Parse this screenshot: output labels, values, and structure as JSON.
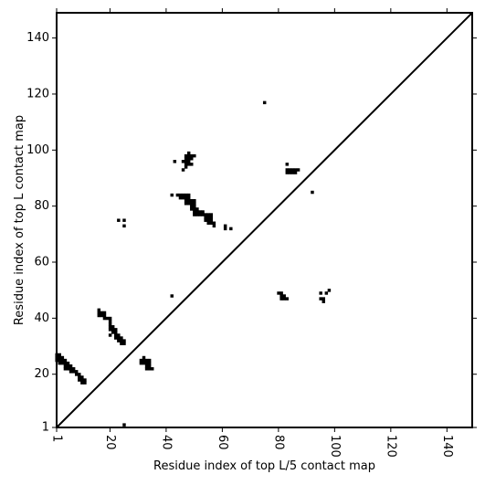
{
  "chart_data": {
    "type": "heatmap",
    "title": "",
    "xlabel": "Residue index of top L/5 contact map",
    "ylabel": "Residue index of top L contact map",
    "xlim": [
      1,
      149
    ],
    "ylim": [
      1,
      149
    ],
    "xticks": [
      {
        "value": 1,
        "label": "1"
      },
      {
        "value": 20,
        "label": "20"
      },
      {
        "value": 40,
        "label": "40"
      },
      {
        "value": 60,
        "label": "60"
      },
      {
        "value": 80,
        "label": "80"
      },
      {
        "value": 100,
        "label": "100"
      },
      {
        "value": 120,
        "label": "120"
      },
      {
        "value": 140,
        "label": "140"
      }
    ],
    "yticks": [
      {
        "value": 1,
        "label": "1"
      },
      {
        "value": 20,
        "label": "20"
      },
      {
        "value": 40,
        "label": "40"
      },
      {
        "value": 60,
        "label": "60"
      },
      {
        "value": 80,
        "label": "80"
      },
      {
        "value": 100,
        "label": "100"
      },
      {
        "value": 120,
        "label": "120"
      },
      {
        "value": 140,
        "label": "140"
      }
    ],
    "diagonal": true,
    "cell_color": "#000000",
    "contacts": [
      [
        1,
        27
      ],
      [
        2,
        27
      ],
      [
        1,
        26
      ],
      [
        2,
        26
      ],
      [
        3,
        26
      ],
      [
        1,
        25
      ],
      [
        2,
        25
      ],
      [
        3,
        25
      ],
      [
        4,
        25
      ],
      [
        2,
        24
      ],
      [
        3,
        24
      ],
      [
        4,
        24
      ],
      [
        5,
        24
      ],
      [
        4,
        23
      ],
      [
        5,
        23
      ],
      [
        6,
        23
      ],
      [
        4,
        22
      ],
      [
        5,
        22
      ],
      [
        6,
        22
      ],
      [
        7,
        22
      ],
      [
        6,
        21
      ],
      [
        7,
        21
      ],
      [
        8,
        21
      ],
      [
        8,
        20
      ],
      [
        9,
        20
      ],
      [
        9,
        19
      ],
      [
        10,
        19
      ],
      [
        9,
        18
      ],
      [
        10,
        18
      ],
      [
        11,
        18
      ],
      [
        10,
        17
      ],
      [
        11,
        17
      ],
      [
        16,
        43
      ],
      [
        16,
        42
      ],
      [
        17,
        42
      ],
      [
        18,
        42
      ],
      [
        16,
        41
      ],
      [
        17,
        41
      ],
      [
        18,
        41
      ],
      [
        18,
        40
      ],
      [
        19,
        40
      ],
      [
        20,
        40
      ],
      [
        20,
        39
      ],
      [
        20,
        38
      ],
      [
        20,
        37
      ],
      [
        21,
        37
      ],
      [
        20,
        36
      ],
      [
        21,
        36
      ],
      [
        22,
        36
      ],
      [
        21,
        35
      ],
      [
        22,
        35
      ],
      [
        20,
        34
      ],
      [
        22,
        34
      ],
      [
        23,
        34
      ],
      [
        22,
        33
      ],
      [
        23,
        33
      ],
      [
        24,
        33
      ],
      [
        23,
        32
      ],
      [
        24,
        32
      ],
      [
        25,
        32
      ],
      [
        24,
        31
      ],
      [
        25,
        31
      ],
      [
        31,
        25
      ],
      [
        32,
        25
      ],
      [
        33,
        25
      ],
      [
        34,
        25
      ],
      [
        32,
        26
      ],
      [
        31,
        24
      ],
      [
        32,
        24
      ],
      [
        33,
        24
      ],
      [
        34,
        24
      ],
      [
        33,
        23
      ],
      [
        34,
        23
      ],
      [
        33,
        22
      ],
      [
        34,
        22
      ],
      [
        35,
        22
      ],
      [
        42,
        48
      ],
      [
        25,
        2
      ],
      [
        48,
        99
      ],
      [
        47,
        98
      ],
      [
        48,
        98
      ],
      [
        49,
        98
      ],
      [
        50,
        98
      ],
      [
        47,
        97
      ],
      [
        48,
        97
      ],
      [
        49,
        97
      ],
      [
        43,
        96
      ],
      [
        46,
        96
      ],
      [
        47,
        96
      ],
      [
        48,
        96
      ],
      [
        47,
        95
      ],
      [
        48,
        95
      ],
      [
        49,
        95
      ],
      [
        47,
        94
      ],
      [
        46,
        93
      ],
      [
        42,
        84
      ],
      [
        44,
        84
      ],
      [
        45,
        84
      ],
      [
        46,
        84
      ],
      [
        47,
        84
      ],
      [
        48,
        84
      ],
      [
        45,
        83
      ],
      [
        46,
        83
      ],
      [
        47,
        83
      ],
      [
        48,
        83
      ],
      [
        47,
        82
      ],
      [
        48,
        82
      ],
      [
        49,
        82
      ],
      [
        50,
        82
      ],
      [
        47,
        81
      ],
      [
        48,
        81
      ],
      [
        49,
        81
      ],
      [
        50,
        81
      ],
      [
        49,
        80
      ],
      [
        50,
        80
      ],
      [
        49,
        79
      ],
      [
        50,
        79
      ],
      [
        51,
        79
      ],
      [
        50,
        78
      ],
      [
        51,
        78
      ],
      [
        52,
        78
      ],
      [
        53,
        78
      ],
      [
        50,
        77
      ],
      [
        51,
        77
      ],
      [
        52,
        77
      ],
      [
        53,
        77
      ],
      [
        54,
        77
      ],
      [
        55,
        77
      ],
      [
        56,
        77
      ],
      [
        54,
        76
      ],
      [
        55,
        76
      ],
      [
        56,
        76
      ],
      [
        54,
        75
      ],
      [
        55,
        75
      ],
      [
        56,
        75
      ],
      [
        55,
        74
      ],
      [
        56,
        74
      ],
      [
        57,
        74
      ],
      [
        57,
        73
      ],
      [
        23,
        75
      ],
      [
        25,
        75
      ],
      [
        25,
        73
      ],
      [
        61,
        73
      ],
      [
        61,
        72
      ],
      [
        63,
        72
      ],
      [
        75,
        117
      ],
      [
        83,
        95
      ],
      [
        83,
        93
      ],
      [
        84,
        93
      ],
      [
        85,
        93
      ],
      [
        86,
        93
      ],
      [
        87,
        93
      ],
      [
        83,
        92
      ],
      [
        84,
        92
      ],
      [
        85,
        92
      ],
      [
        86,
        92
      ],
      [
        92,
        85
      ],
      [
        80,
        49
      ],
      [
        81,
        49
      ],
      [
        81,
        48
      ],
      [
        82,
        48
      ],
      [
        81,
        47
      ],
      [
        82,
        47
      ],
      [
        83,
        47
      ],
      [
        95,
        49
      ],
      [
        97,
        49
      ],
      [
        98,
        50
      ],
      [
        95,
        47
      ],
      [
        96,
        47
      ],
      [
        96,
        46
      ]
    ]
  }
}
